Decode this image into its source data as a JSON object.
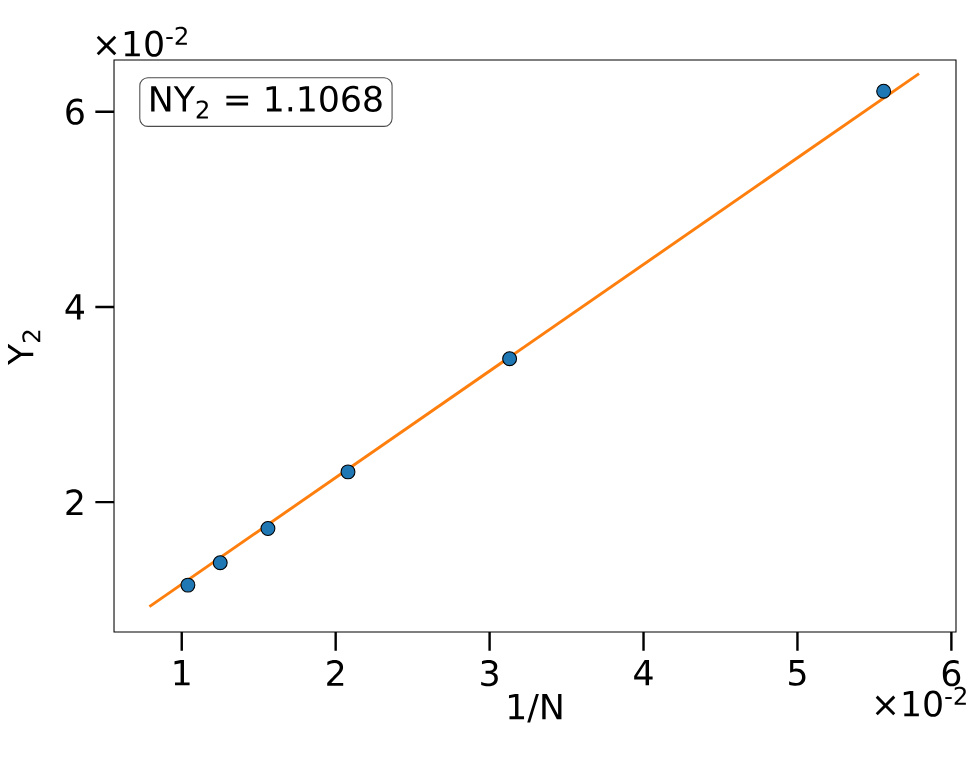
{
  "chart_data": {
    "type": "scatter",
    "xlabel": "1/N",
    "ylabel": "Y$_{2}$",
    "series": [
      {
        "color": "#1f77b4",
        "marker": "circle",
        "x": [
          1.04,
          1.25,
          1.56,
          2.08,
          3.13,
          5.56
        ],
        "values": [
          1.15,
          1.38,
          1.73,
          2.31,
          3.47,
          6.21
        ]
      },
      {
        "type": "line",
        "color": "#ff7f0e",
        "x": [
          0.79,
          5.79
        ],
        "values": [
          0.93,
          6.39
        ]
      }
    ],
    "xlim": [
      0.56,
      6.03
    ],
    "ylim": [
      0.67,
      6.53
    ],
    "xticks": [
      1,
      2,
      3,
      4,
      5,
      6
    ],
    "yticks": [
      2,
      4,
      6
    ],
    "grid": false,
    "annotations": [
      "NY$_{2}$ = 1.1068",
      "×10$^{-2}$",
      "×10$^{-2}$"
    ]
  }
}
